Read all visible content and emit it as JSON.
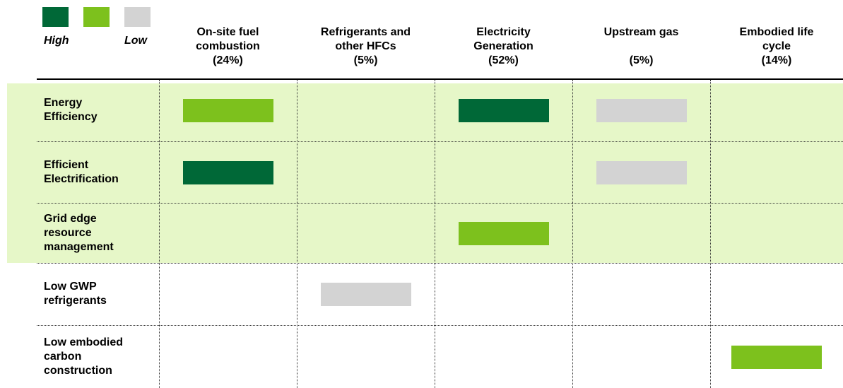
{
  "legend": {
    "colors": [
      "#006837",
      "#7dc11d",
      "#d3d3d3"
    ],
    "high": "High",
    "low": "Low"
  },
  "highlight_color": "#e6f7c8",
  "columns": [
    "On-site fuel\ncombustion\n(24%)",
    "Refrigerants and\nother HFCs\n(5%)",
    "Electricity\nGeneration\n(52%)",
    "Upstream gas\n\n(5%)",
    "Embodied life\ncycle\n(14%)"
  ],
  "rows": [
    {
      "label": "Energy\nEfficiency",
      "highlight": true,
      "cells": [
        "#7dc11d",
        null,
        "#006837",
        "#d3d3d3",
        null
      ]
    },
    {
      "label": "Efficient\nElectrification",
      "highlight": true,
      "cells": [
        "#006837",
        null,
        null,
        "#d3d3d3",
        null
      ]
    },
    {
      "label": "Grid edge\nresource\nmanagement",
      "highlight": true,
      "cells": [
        null,
        null,
        "#7dc11d",
        null,
        null
      ]
    },
    {
      "label": "Low GWP\nrefrigerants",
      "highlight": false,
      "cells": [
        null,
        "#d3d3d3",
        null,
        null,
        null
      ]
    },
    {
      "label": "Low embodied\ncarbon\nconstruction",
      "highlight": false,
      "cells": [
        null,
        null,
        null,
        null,
        "#7dc11d"
      ]
    }
  ]
}
